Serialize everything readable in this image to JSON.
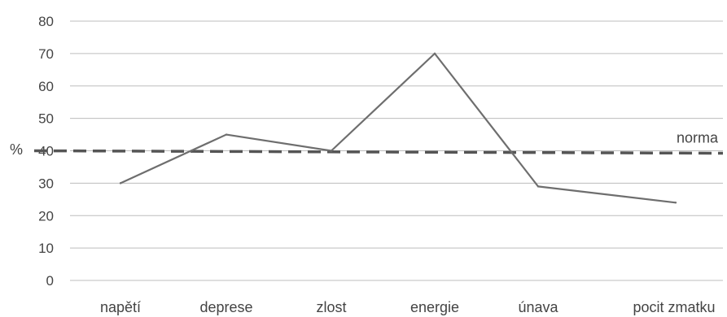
{
  "chart_data": {
    "type": "line",
    "categories": [
      "napětí",
      "deprese",
      "zlost",
      "energie",
      "únava",
      "pocit zmatku"
    ],
    "series": [
      {
        "values": [
          30,
          45,
          40,
          70,
          29,
          24
        ]
      }
    ],
    "ylabel": "%",
    "ylim": [
      0,
      80
    ],
    "yticks": [
      0,
      10,
      20,
      30,
      40,
      50,
      60,
      70,
      80
    ],
    "grid": true,
    "reference_line": {
      "label": "norma",
      "value": 40,
      "style": "dashed"
    },
    "colors": {
      "series": "#6e6e6e",
      "reference": "#555555",
      "grid": "#bdbdbd",
      "text": "#444444"
    }
  }
}
